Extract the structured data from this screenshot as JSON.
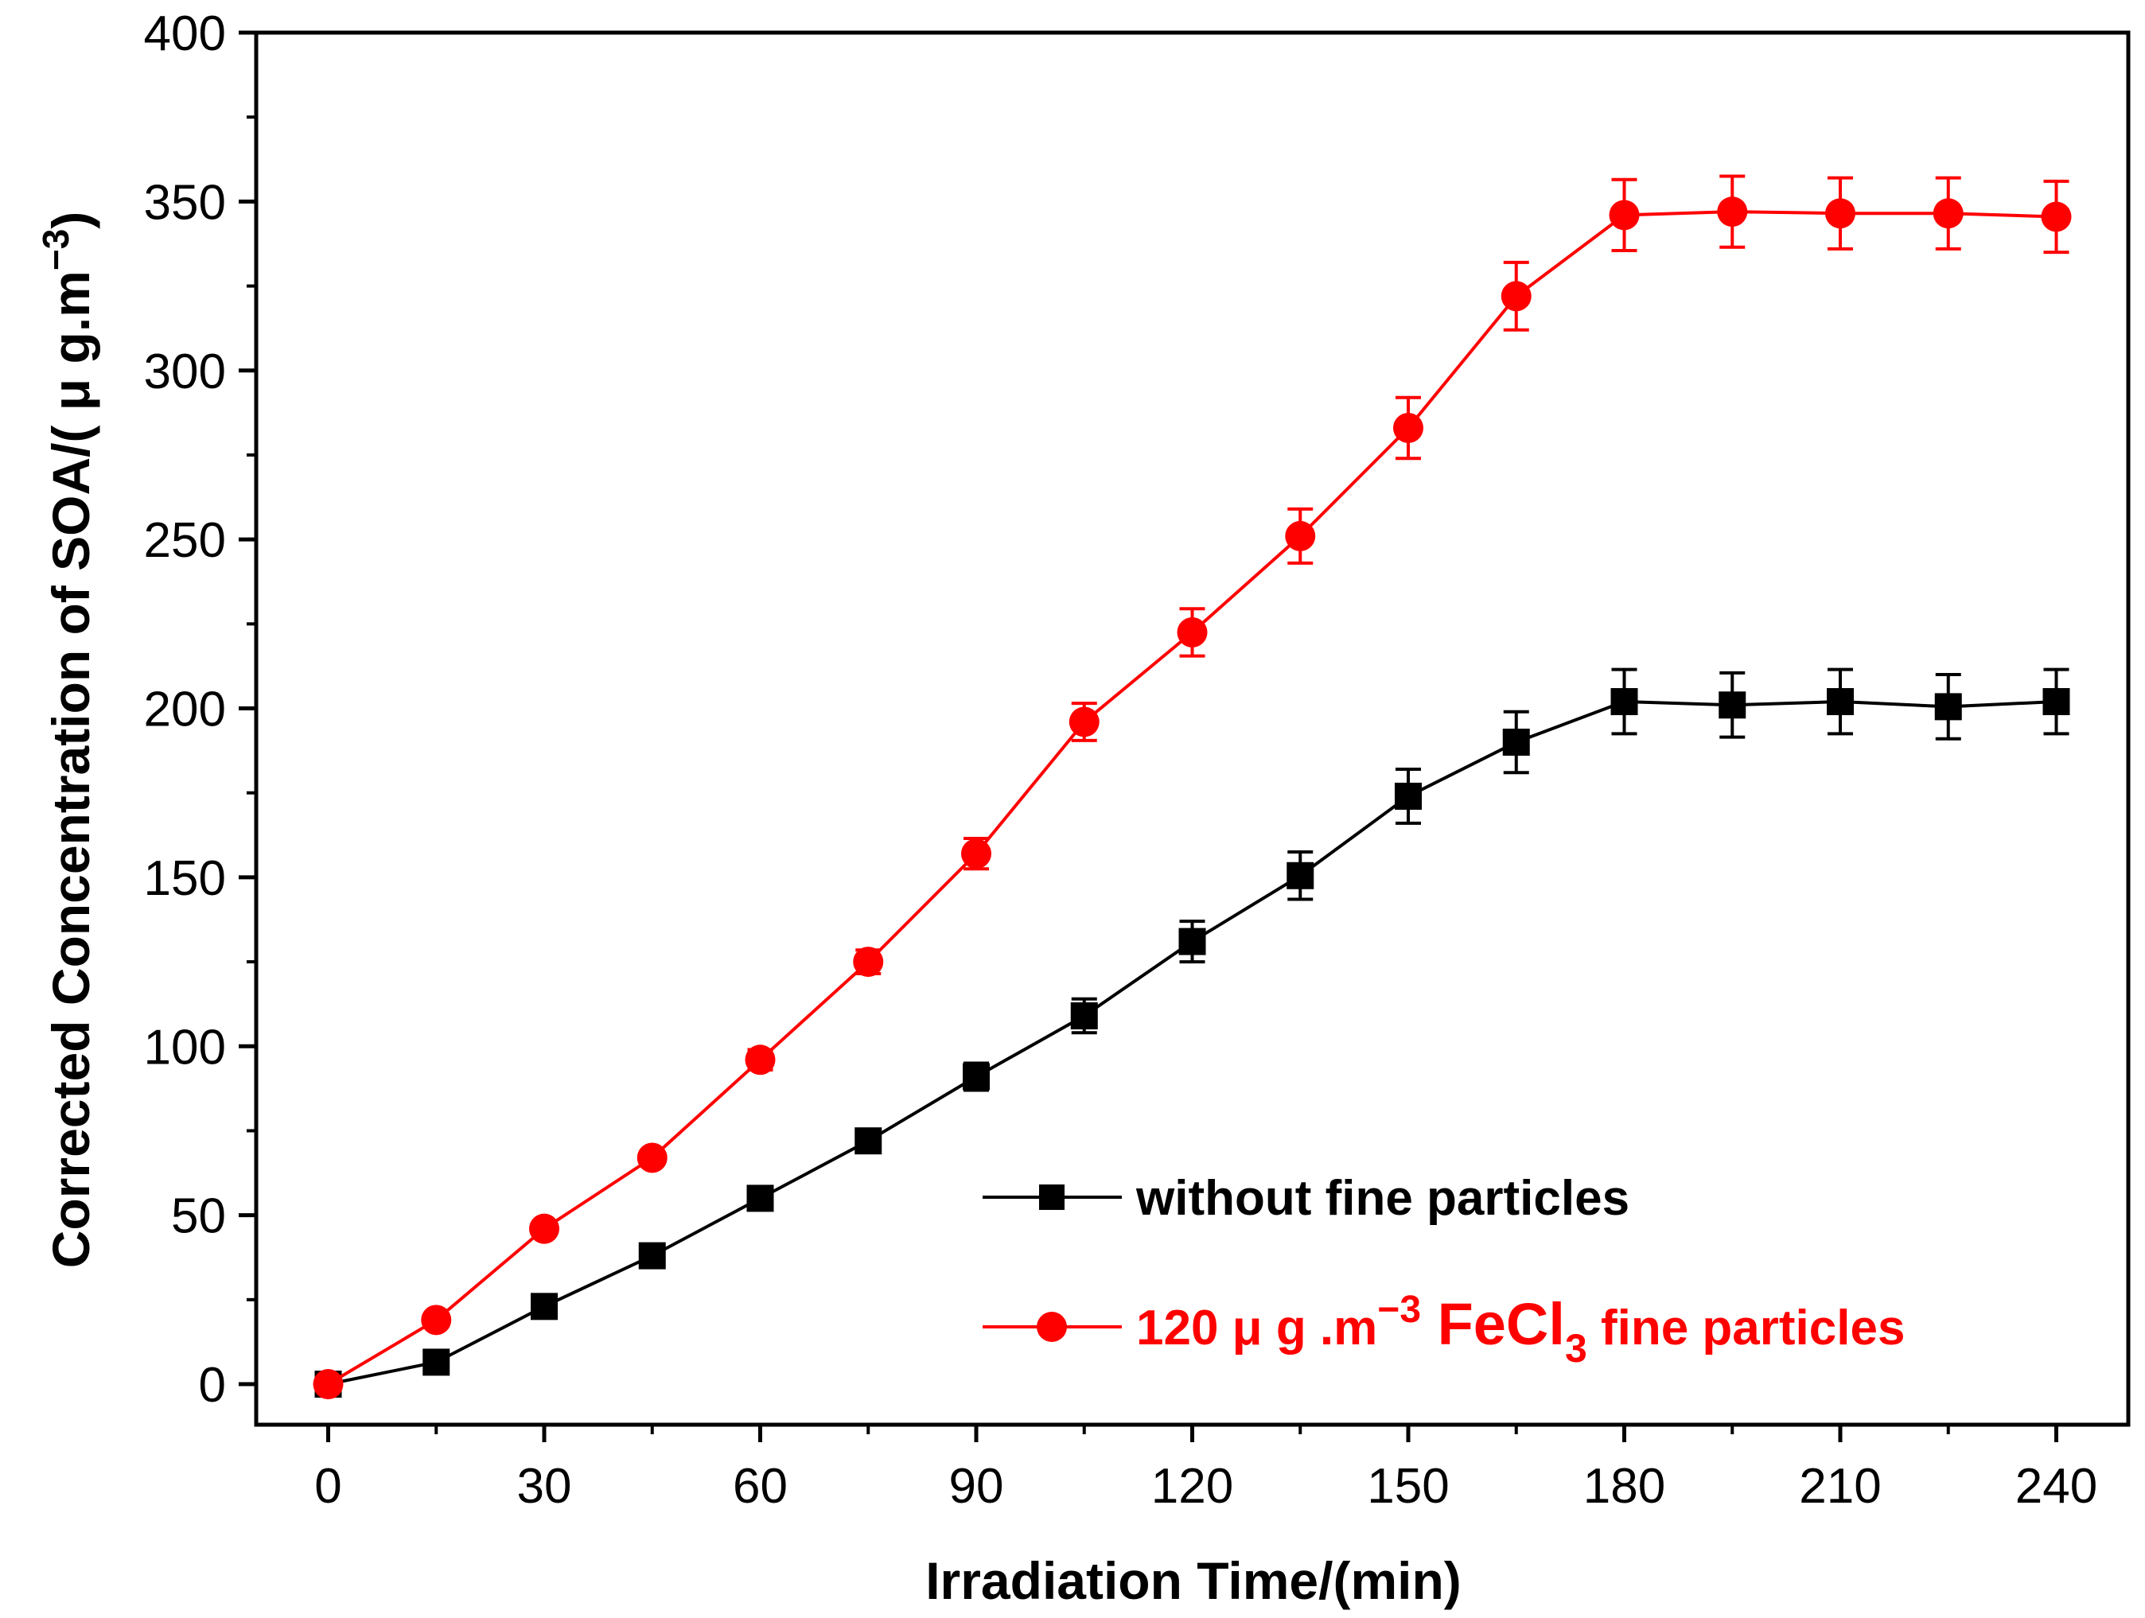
{
  "chart_data": {
    "type": "line",
    "title": "",
    "xlabel": "Irradiation Time/(min)",
    "ylabel": "Corrected  Concentration of SOA/( μ g.m",
    "ylabel_sup": "−3",
    "ylabel_close": ")",
    "xlim": [
      -10,
      250
    ],
    "ylim": [
      -12,
      400
    ],
    "xticks": [
      0,
      30,
      60,
      90,
      120,
      150,
      180,
      210,
      240
    ],
    "yticks": [
      0,
      50,
      100,
      150,
      200,
      250,
      300,
      350,
      400
    ],
    "legend_position": "lower-right",
    "series": [
      {
        "name": "without fine particles",
        "color": "#000000",
        "marker": "square",
        "x": [
          0,
          15,
          30,
          45,
          60,
          75,
          90,
          105,
          120,
          135,
          150,
          165,
          180,
          195,
          210,
          225,
          240
        ],
        "y": [
          0,
          6.5,
          23,
          38,
          55,
          72,
          91,
          109,
          131,
          150.5,
          174,
          190,
          202,
          201,
          202,
          200.5,
          202
        ],
        "err": [
          1.5,
          2,
          2,
          2,
          2.5,
          3,
          4,
          5,
          6,
          7,
          8,
          9,
          9.5,
          9.5,
          9.5,
          9.5,
          9.5
        ]
      },
      {
        "name_parts": {
          "value": "120  μ g .m",
          "sup": "−3",
          "compound": " FeCl",
          "sub": "3",
          "rest": " fine particles"
        },
        "color": "#ff0000",
        "marker": "circle",
        "x": [
          0,
          15,
          30,
          45,
          60,
          75,
          90,
          105,
          120,
          135,
          150,
          165,
          180,
          195,
          210,
          225,
          240
        ],
        "y": [
          0,
          19,
          46,
          67,
          96,
          125,
          157,
          196,
          222.5,
          251,
          283,
          322,
          346,
          347,
          346.5,
          346.5,
          345.5
        ],
        "err": [
          1,
          1.5,
          2,
          2,
          3,
          3.5,
          4.5,
          5.5,
          7,
          8,
          9,
          10,
          10.5,
          10.5,
          10.5,
          10.5,
          10.5
        ]
      }
    ]
  }
}
